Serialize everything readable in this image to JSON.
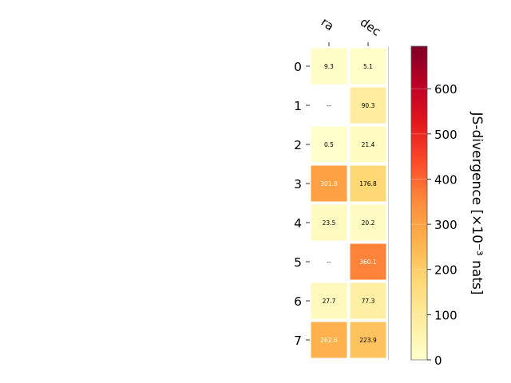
{
  "chart_data": {
    "type": "heatmap",
    "columns": [
      "ra",
      "dec"
    ],
    "rows": [
      "0",
      "1",
      "2",
      "3",
      "4",
      "5",
      "6",
      "7"
    ],
    "values": [
      [
        9.3,
        5.1
      ],
      [
        null,
        90.3
      ],
      [
        0.5,
        21.4
      ],
      [
        301.8,
        176.8
      ],
      [
        23.5,
        20.2
      ],
      [
        null,
        360.1
      ],
      [
        27.7,
        77.3
      ],
      [
        262.6,
        223.9
      ]
    ],
    "cell_labels": [
      [
        "9.3",
        "5.1"
      ],
      [
        "--",
        "90.3"
      ],
      [
        "0.5",
        "21.4"
      ],
      [
        "301.8",
        "176.8"
      ],
      [
        "23.5",
        "20.2"
      ],
      [
        "--",
        "360.1"
      ],
      [
        "27.7",
        "77.3"
      ],
      [
        "262.6",
        "223.9"
      ]
    ],
    "colormap": "YlOrRd",
    "colorbar": {
      "label": "JS-divergence [×10⁻³ nats]",
      "range": [
        0,
        694
      ],
      "ticks": [
        0,
        100,
        200,
        300,
        400,
        500,
        600
      ]
    }
  }
}
